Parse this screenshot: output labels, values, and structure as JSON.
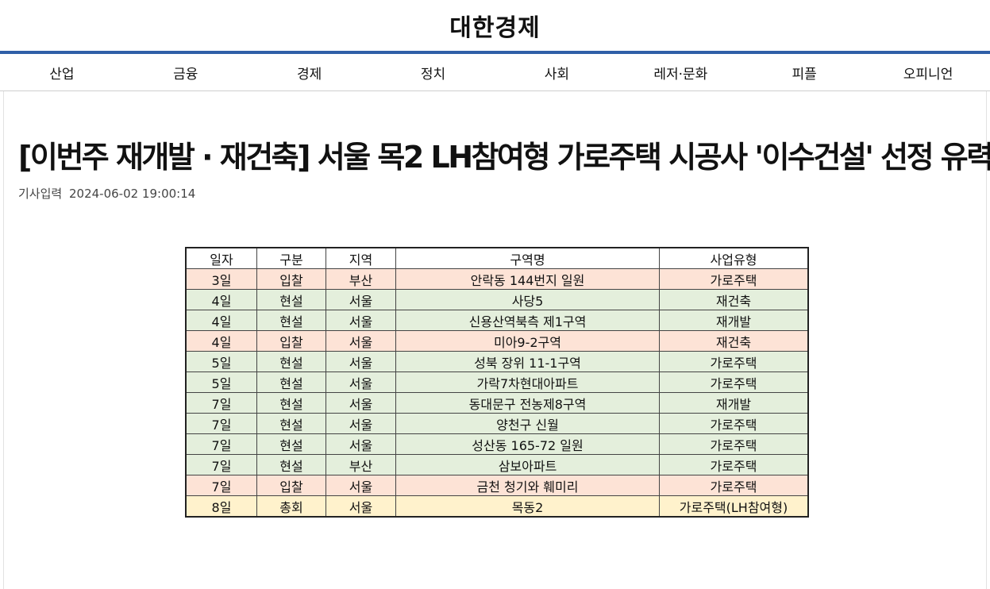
{
  "site": {
    "logo": "대한경제"
  },
  "nav": [
    "산업",
    "금융",
    "경제",
    "정치",
    "사회",
    "레저·문화",
    "피플",
    "오피니언"
  ],
  "article": {
    "headline": "[이번주 재개발 · 재건축] 서울 목2 LH참여형 가로주택 시공사 '이수건설' 선정 유력",
    "meta_label": "기사입력",
    "date": "2024-06-02 19:00:14"
  },
  "colors": {
    "accent": "#2f5fa7",
    "pink_row": "#fde3d6",
    "green_row": "#e4efdc",
    "yellow_row": "#fff2cc"
  },
  "table": {
    "headers": [
      "일자",
      "구분",
      "지역",
      "구역명",
      "사업유형"
    ],
    "rows": [
      {
        "day": "3일",
        "type": "입찰",
        "region": "부산",
        "name": "안락동 144번지 일원",
        "project": "가로주택",
        "color": "#fde3d6"
      },
      {
        "day": "4일",
        "type": "현설",
        "region": "서울",
        "name": "사당5",
        "project": "재건축",
        "color": "#e4efdc"
      },
      {
        "day": "4일",
        "type": "현설",
        "region": "서울",
        "name": "신용산역북측 제1구역",
        "project": "재개발",
        "color": "#e4efdc"
      },
      {
        "day": "4일",
        "type": "입찰",
        "region": "서울",
        "name": "미아9-2구역",
        "project": "재건축",
        "color": "#fde3d6"
      },
      {
        "day": "5일",
        "type": "현설",
        "region": "서울",
        "name": "성북 장위 11-1구역",
        "project": "가로주택",
        "color": "#e4efdc"
      },
      {
        "day": "5일",
        "type": "현설",
        "region": "서울",
        "name": "가락7차현대아파트",
        "project": "가로주택",
        "color": "#e4efdc"
      },
      {
        "day": "7일",
        "type": "현설",
        "region": "서울",
        "name": "동대문구 전농제8구역",
        "project": "재개발",
        "color": "#e4efdc"
      },
      {
        "day": "7일",
        "type": "현설",
        "region": "서울",
        "name": "양천구 신월",
        "project": "가로주택",
        "color": "#e4efdc"
      },
      {
        "day": "7일",
        "type": "현설",
        "region": "서울",
        "name": "성산동 165-72 일원",
        "project": "가로주택",
        "color": "#e4efdc"
      },
      {
        "day": "7일",
        "type": "현설",
        "region": "부산",
        "name": "삼보아파트",
        "project": "가로주택",
        "color": "#e4efdc"
      },
      {
        "day": "7일",
        "type": "입찰",
        "region": "서울",
        "name": "금천 청기와 훼미리",
        "project": "가로주택",
        "color": "#fde3d6"
      },
      {
        "day": "8일",
        "type": "총회",
        "region": "서울",
        "name": "목동2",
        "project": "가로주택(LH참여형)",
        "color": "#fff2cc"
      }
    ]
  }
}
